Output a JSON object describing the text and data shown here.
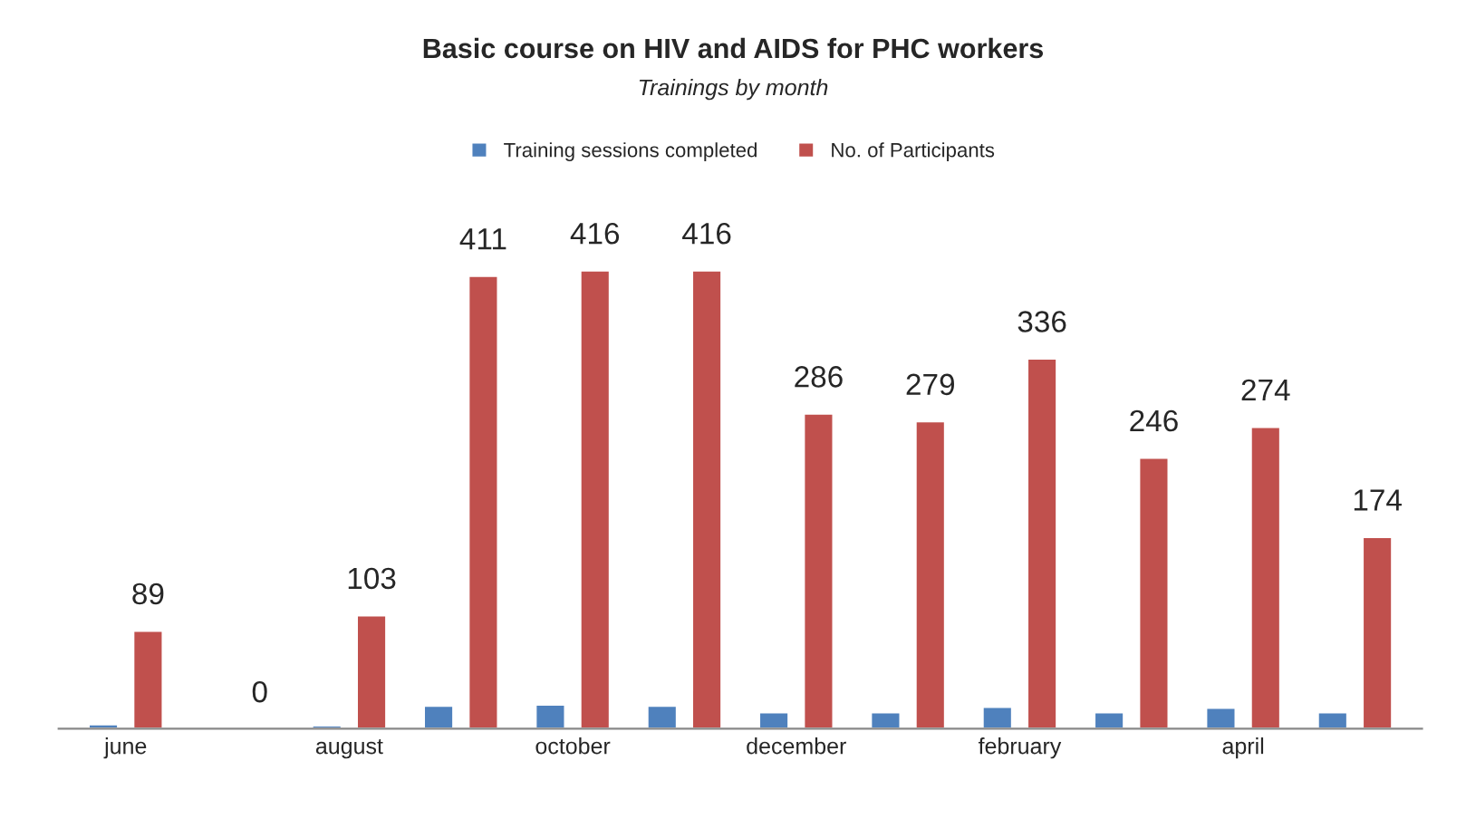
{
  "chart_data": {
    "type": "bar",
    "title": "Basic course on HIV and AIDS for PHC workers",
    "subtitle": "Trainings by month",
    "categories": [
      "june",
      null,
      "august",
      null,
      "october",
      null,
      "december",
      null,
      "february",
      null,
      "april",
      null
    ],
    "series": [
      {
        "name": "Training sessions completed",
        "color": "#4f81bd",
        "values": [
          4,
          null,
          3,
          21,
          22,
          21,
          15,
          15,
          20,
          15,
          19,
          15
        ]
      },
      {
        "name": "No. of Participants",
        "color": "#c0504d",
        "values": [
          89,
          0,
          103,
          411,
          416,
          416,
          286,
          279,
          336,
          246,
          274,
          174
        ],
        "value_labels": [
          "89",
          "0",
          "103",
          "411",
          "416",
          "416",
          "286",
          "279",
          "336",
          "246",
          "274",
          "174"
        ]
      }
    ],
    "legend": "top",
    "grid": false
  }
}
